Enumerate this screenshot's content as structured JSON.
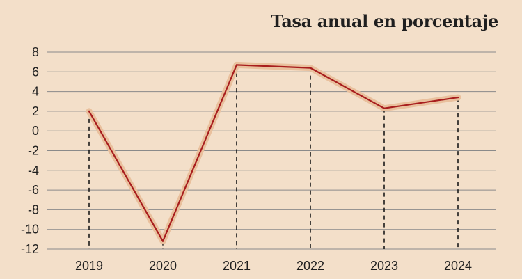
{
  "chart_data": {
    "type": "line",
    "title": "Tasa anual en porcentaje",
    "categories": [
      "2019",
      "2020",
      "2021",
      "2022",
      "2023",
      "2024"
    ],
    "values": [
      2.0,
      -11.2,
      6.7,
      6.4,
      2.3,
      3.4
    ],
    "ylim": [
      -12,
      8
    ],
    "yticks": [
      8,
      6,
      4,
      2,
      0,
      -2,
      -4,
      -6,
      -8,
      -10,
      -12
    ],
    "xlabel": "",
    "ylabel": "",
    "grid": true,
    "line_color": "#a81d1d",
    "halo_color": "#e9c09d",
    "grid_color": "#8a8a8a",
    "background": "#f3dfc9"
  }
}
